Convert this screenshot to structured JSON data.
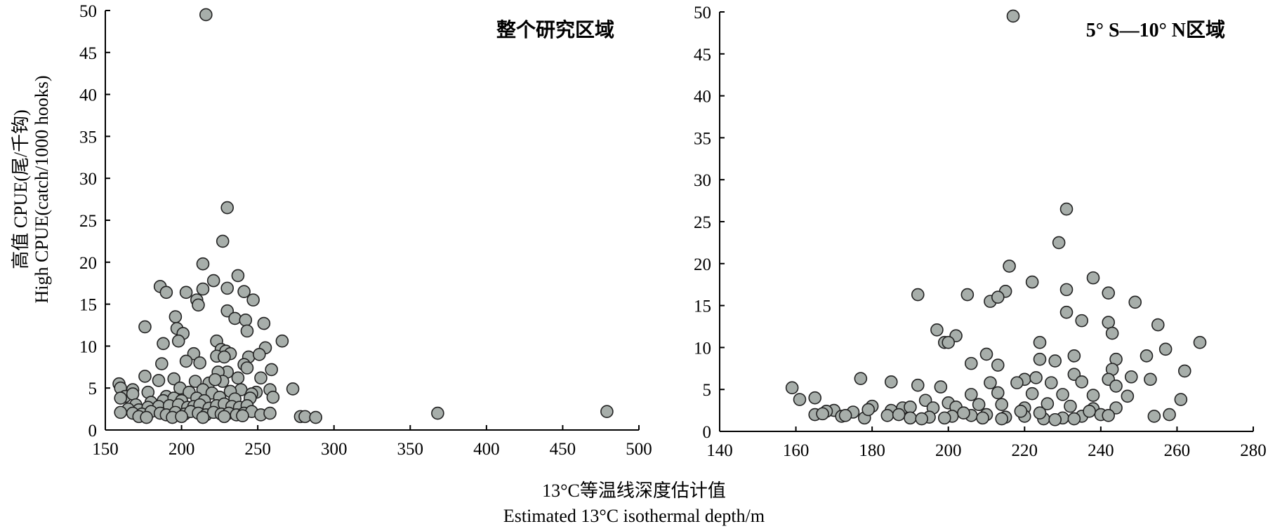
{
  "ylabel_cn": "高值 CPUE(尾/千钩)",
  "ylabel_en": "High CPUE(catch/1000 hooks)",
  "xlabel_cn": "13°C等温线深度估计值",
  "xlabel_en": "Estimated 13°C isothermal depth/m",
  "chart_data": [
    {
      "type": "scatter",
      "title": "整个研究区域",
      "xlim": [
        150,
        500
      ],
      "ylim": [
        0,
        50
      ],
      "xticks": [
        150,
        200,
        250,
        300,
        350,
        400,
        450,
        500
      ],
      "yticks": [
        0,
        5,
        10,
        15,
        20,
        25,
        30,
        35,
        40,
        45,
        50
      ],
      "marker_color": "#a7aeaa",
      "points": [
        [
          216,
          49.5
        ],
        [
          230,
          26.5
        ],
        [
          227,
          22.5
        ],
        [
          214,
          19.8
        ],
        [
          221,
          17.8
        ],
        [
          237,
          18.4
        ],
        [
          186,
          17.1
        ],
        [
          190,
          16.4
        ],
        [
          203,
          16.4
        ],
        [
          214,
          16.8
        ],
        [
          241,
          16.5
        ],
        [
          230,
          16.9
        ],
        [
          247,
          15.5
        ],
        [
          210,
          15.5
        ],
        [
          211,
          14.9
        ],
        [
          230,
          14.2
        ],
        [
          196,
          13.5
        ],
        [
          235,
          13.3
        ],
        [
          242,
          13.1
        ],
        [
          254,
          12.7
        ],
        [
          176,
          12.3
        ],
        [
          197,
          12.1
        ],
        [
          243,
          11.8
        ],
        [
          201,
          11.5
        ],
        [
          198,
          10.6
        ],
        [
          188,
          10.3
        ],
        [
          223,
          10.6
        ],
        [
          266,
          10.6
        ],
        [
          255,
          9.8
        ],
        [
          226,
          9.6
        ],
        [
          229,
          9.4
        ],
        [
          208,
          9.1
        ],
        [
          232,
          9.1
        ],
        [
          223,
          8.8
        ],
        [
          228,
          8.7
        ],
        [
          244,
          8.7
        ],
        [
          251,
          9.0
        ],
        [
          203,
          8.2
        ],
        [
          212,
          8.0
        ],
        [
          187,
          7.9
        ],
        [
          241,
          7.8
        ],
        [
          243,
          7.4
        ],
        [
          259,
          7.2
        ],
        [
          230,
          6.9
        ],
        [
          224,
          6.9
        ],
        [
          195,
          6.1
        ],
        [
          176,
          6.4
        ],
        [
          185,
          5.9
        ],
        [
          209,
          5.8
        ],
        [
          227,
          5.8
        ],
        [
          218,
          5.6
        ],
        [
          222,
          6.0
        ],
        [
          237,
          6.2
        ],
        [
          252,
          6.2
        ],
        [
          159,
          5.5
        ],
        [
          160,
          5.0
        ],
        [
          168,
          4.8
        ],
        [
          199,
          5.0
        ],
        [
          214,
          4.8
        ],
        [
          239,
          4.8
        ],
        [
          249,
          4.5
        ],
        [
          273,
          4.9
        ],
        [
          258,
          4.8
        ],
        [
          163,
          4.0
        ],
        [
          168,
          4.3
        ],
        [
          178,
          4.5
        ],
        [
          190,
          4.0
        ],
        [
          205,
          4.5
        ],
        [
          220,
          4.4
        ],
        [
          232,
          4.6
        ],
        [
          246,
          4.3
        ],
        [
          160,
          3.8
        ],
        [
          170,
          3.0
        ],
        [
          180,
          3.3
        ],
        [
          188,
          3.5
        ],
        [
          195,
          3.8
        ],
        [
          200,
          3.5
        ],
        [
          210,
          3.8
        ],
        [
          215,
          3.5
        ],
        [
          225,
          3.9
        ],
        [
          235,
          3.7
        ],
        [
          245,
          3.8
        ],
        [
          260,
          3.9
        ],
        [
          165,
          2.5
        ],
        [
          172,
          2.4
        ],
        [
          178,
          2.7
        ],
        [
          185,
          2.8
        ],
        [
          192,
          2.9
        ],
        [
          198,
          3.0
        ],
        [
          204,
          2.7
        ],
        [
          208,
          2.8
        ],
        [
          212,
          3.0
        ],
        [
          218,
          2.6
        ],
        [
          223,
          2.9
        ],
        [
          228,
          3.1
        ],
        [
          233,
          2.8
        ],
        [
          238,
          2.7
        ],
        [
          243,
          2.9
        ],
        [
          160,
          2.1
        ],
        [
          168,
          2.0
        ],
        [
          174,
          1.9
        ],
        [
          180,
          2.2
        ],
        [
          186,
          2.0
        ],
        [
          190,
          1.8
        ],
        [
          196,
          2.1
        ],
        [
          202,
          1.9
        ],
        [
          206,
          2.2
        ],
        [
          211,
          2.0
        ],
        [
          216,
          1.8
        ],
        [
          221,
          2.1
        ],
        [
          226,
          1.9
        ],
        [
          231,
          2.0
        ],
        [
          236,
          1.8
        ],
        [
          241,
          2.0
        ],
        [
          246,
          2.2
        ],
        [
          252,
          1.8
        ],
        [
          258,
          2.0
        ],
        [
          172,
          1.6
        ],
        [
          177,
          1.5
        ],
        [
          194,
          1.5
        ],
        [
          200,
          1.6
        ],
        [
          214,
          1.5
        ],
        [
          228,
          1.6
        ],
        [
          240,
          1.7
        ],
        [
          278,
          1.6
        ],
        [
          281,
          1.6
        ],
        [
          288,
          1.5
        ],
        [
          368,
          2.0
        ],
        [
          479,
          2.2
        ]
      ]
    },
    {
      "type": "scatter",
      "title": "5° S—10° N区域",
      "xlim": [
        140,
        280
      ],
      "ylim": [
        0,
        50
      ],
      "xticks": [
        140,
        160,
        180,
        200,
        220,
        240,
        260,
        280
      ],
      "yticks": [
        0,
        5,
        10,
        15,
        20,
        25,
        30,
        35,
        40,
        45,
        50
      ],
      "marker_color": "#a7aeaa",
      "points": [
        [
          217,
          49.5
        ],
        [
          231,
          26.5
        ],
        [
          229,
          22.5
        ],
        [
          216,
          19.7
        ],
        [
          222,
          17.8
        ],
        [
          238,
          18.3
        ],
        [
          192,
          16.3
        ],
        [
          205,
          16.3
        ],
        [
          215,
          16.7
        ],
        [
          231,
          16.9
        ],
        [
          242,
          16.5
        ],
        [
          249,
          15.4
        ],
        [
          211,
          15.5
        ],
        [
          213,
          16.0
        ],
        [
          231,
          14.2
        ],
        [
          235,
          13.2
        ],
        [
          242,
          13.0
        ],
        [
          255,
          12.7
        ],
        [
          197,
          12.1
        ],
        [
          243,
          11.7
        ],
        [
          202,
          11.4
        ],
        [
          199,
          10.6
        ],
        [
          200,
          10.6
        ],
        [
          224,
          10.6
        ],
        [
          266,
          10.6
        ],
        [
          257,
          9.8
        ],
        [
          210,
          9.2
        ],
        [
          233,
          9.0
        ],
        [
          252,
          9.0
        ],
        [
          224,
          8.6
        ],
        [
          228,
          8.4
        ],
        [
          244,
          8.6
        ],
        [
          206,
          8.1
        ],
        [
          213,
          7.9
        ],
        [
          243,
          7.4
        ],
        [
          262,
          7.2
        ],
        [
          177,
          6.3
        ],
        [
          185,
          5.9
        ],
        [
          220,
          6.2
        ],
        [
          223,
          6.4
        ],
        [
          233,
          6.8
        ],
        [
          242,
          6.2
        ],
        [
          248,
          6.5
        ],
        [
          253,
          6.2
        ],
        [
          159,
          5.2
        ],
        [
          192,
          5.5
        ],
        [
          198,
          5.3
        ],
        [
          211,
          5.8
        ],
        [
          218,
          5.8
        ],
        [
          227,
          5.8
        ],
        [
          235,
          5.9
        ],
        [
          244,
          5.4
        ],
        [
          165,
          4.0
        ],
        [
          170,
          2.5
        ],
        [
          180,
          3.0
        ],
        [
          188,
          2.8
        ],
        [
          194,
          3.7
        ],
        [
          200,
          3.4
        ],
        [
          206,
          4.4
        ],
        [
          213,
          4.6
        ],
        [
          222,
          4.5
        ],
        [
          230,
          4.4
        ],
        [
          238,
          4.3
        ],
        [
          247,
          4.2
        ],
        [
          261,
          3.8
        ],
        [
          161,
          3.8
        ],
        [
          168,
          2.4
        ],
        [
          175,
          2.3
        ],
        [
          185,
          2.5
        ],
        [
          190,
          2.9
        ],
        [
          196,
          2.8
        ],
        [
          202,
          2.9
        ],
        [
          208,
          3.2
        ],
        [
          214,
          3.2
        ],
        [
          220,
          2.8
        ],
        [
          226,
          3.3
        ],
        [
          232,
          3.0
        ],
        [
          238,
          2.7
        ],
        [
          244,
          2.8
        ],
        [
          165,
          2.0
        ],
        [
          172,
          1.8
        ],
        [
          178,
          1.6
        ],
        [
          184,
          1.9
        ],
        [
          190,
          1.6
        ],
        [
          195,
          1.7
        ],
        [
          201,
          1.8
        ],
        [
          206,
          1.9
        ],
        [
          210,
          2.0
        ],
        [
          215,
          1.7
        ],
        [
          220,
          1.8
        ],
        [
          225,
          1.5
        ],
        [
          230,
          1.6
        ],
        [
          235,
          1.8
        ],
        [
          240,
          2.0
        ],
        [
          254,
          1.8
        ],
        [
          258,
          2.0
        ],
        [
          167,
          2.1
        ],
        [
          173,
          1.9
        ],
        [
          179,
          2.6
        ],
        [
          187,
          2.0
        ],
        [
          193,
          1.5
        ],
        [
          199,
          1.6
        ],
        [
          204,
          2.2
        ],
        [
          209,
          1.6
        ],
        [
          214,
          1.5
        ],
        [
          219,
          2.4
        ],
        [
          224,
          2.2
        ],
        [
          228,
          1.4
        ],
        [
          233,
          1.5
        ],
        [
          237,
          2.4
        ],
        [
          242,
          1.9
        ]
      ]
    }
  ]
}
